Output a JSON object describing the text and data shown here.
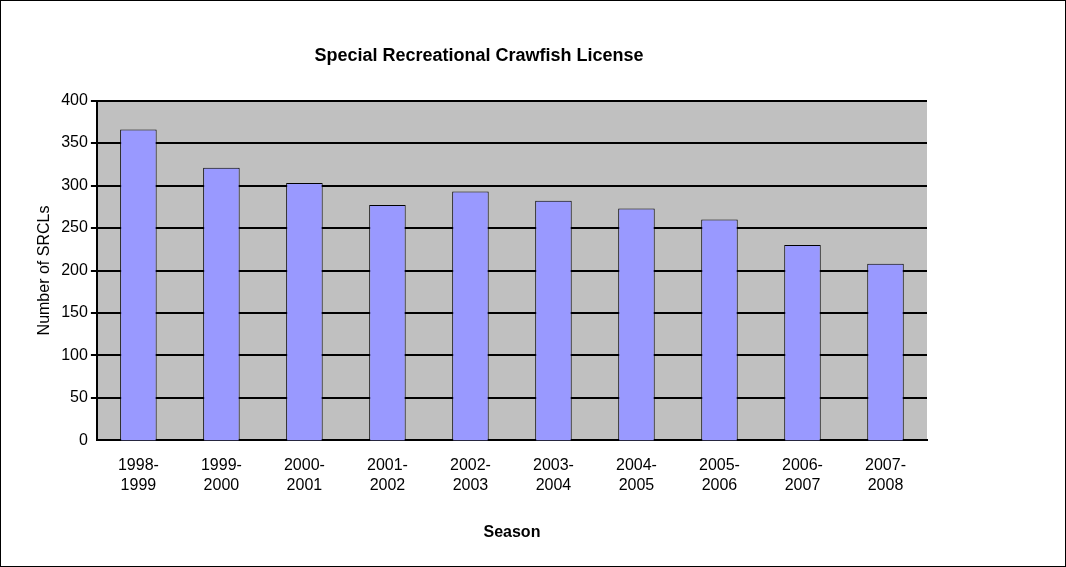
{
  "chart_data": {
    "type": "bar",
    "title": "Special Recreational Crawfish License",
    "xlabel": "Season",
    "ylabel": "Number of SRCLs",
    "categories": [
      "1998-1999",
      "1999-2000",
      "2000-2001",
      "2001-2002",
      "2002-2003",
      "2003-2004",
      "2004-2005",
      "2005-2006",
      "2006-2007",
      "2007-2008"
    ],
    "values": [
      366,
      321,
      303,
      277,
      293,
      282,
      273,
      260,
      230,
      208
    ],
    "color": "#9999ff",
    "ylim": [
      0,
      400
    ],
    "yticks": [
      0,
      50,
      100,
      150,
      200,
      250,
      300,
      350,
      400
    ],
    "grid": "y",
    "legend": false
  }
}
